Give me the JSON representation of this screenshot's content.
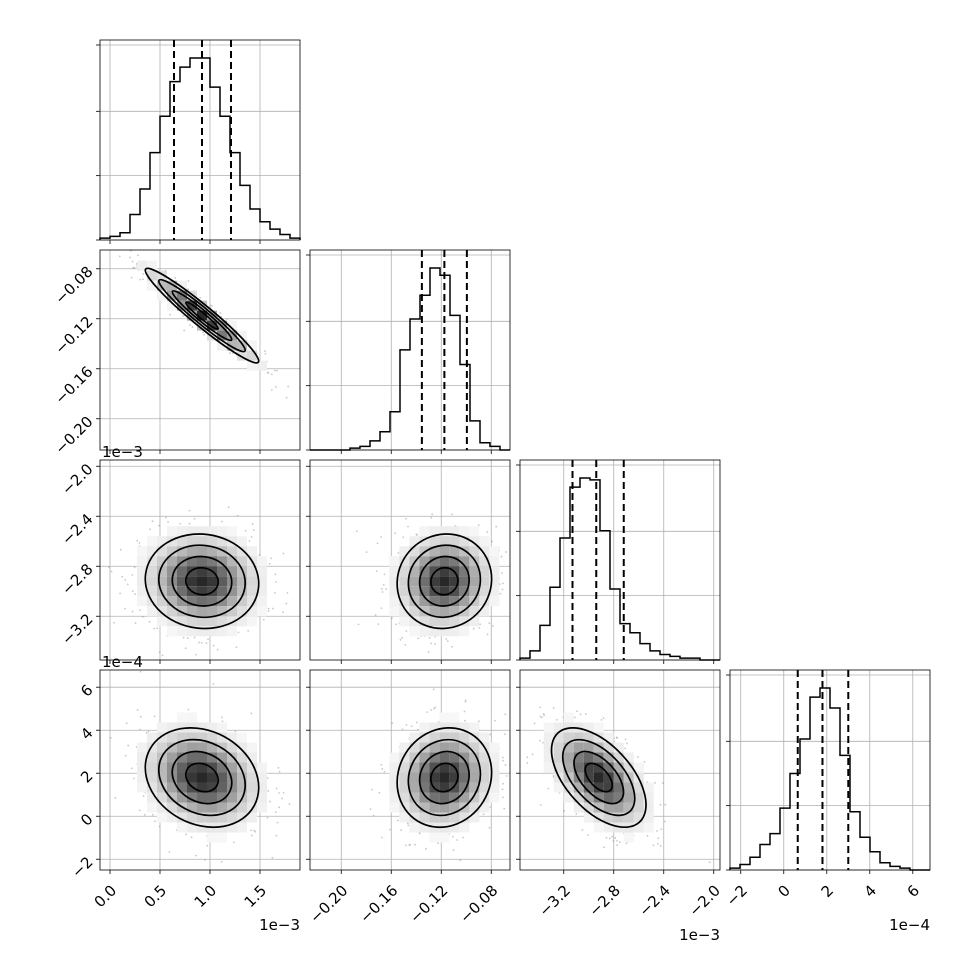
{
  "chart_data": {
    "type": "corner",
    "style": {
      "grid": true,
      "hist_color": "#000000",
      "scatter_color": "#9a9a9a",
      "contour_color": "#000000"
    },
    "params": [
      {
        "id": "p0",
        "range": [
          -0.0001,
          0.0019
        ],
        "offset_label": "1e−3",
        "ticks": [
          {
            "v": 0.0,
            "label": "0.0"
          },
          {
            "v": 0.0005,
            "label": "0.5"
          },
          {
            "v": 0.001,
            "label": "1.0"
          },
          {
            "v": 0.0015,
            "label": "1.5"
          }
        ],
        "mean": 0.00092,
        "sd": 0.00027,
        "quantiles": [
          0.00064,
          0.00092,
          0.00121
        ],
        "hist_counts": [
          1,
          2,
          4,
          14,
          28,
          48,
          68,
          87,
          95,
          100,
          100,
          84,
          68,
          48,
          30,
          17,
          10,
          6,
          3,
          1
        ]
      },
      {
        "id": "p1",
        "range": [
          -0.225,
          -0.065
        ],
        "offset_label": "",
        "ticks": [
          {
            "v": -0.2,
            "label": "−0.20"
          },
          {
            "v": -0.16,
            "label": "−0.16"
          },
          {
            "v": -0.12,
            "label": "−0.12"
          },
          {
            "v": -0.08,
            "label": "−0.08"
          }
        ],
        "mean": -0.1175,
        "sd": 0.018,
        "quantiles": [
          -0.1355,
          -0.1175,
          -0.0995
        ],
        "hist_counts": [
          0,
          0,
          0,
          0,
          1,
          2,
          5,
          10,
          21,
          55,
          72,
          85,
          100,
          96,
          74,
          47,
          16,
          4,
          2,
          0
        ]
      },
      {
        "id": "p2",
        "range": [
          -0.00355,
          -0.00195
        ],
        "offset_label": "1e−3",
        "ticks": [
          {
            "v": -0.0032,
            "label": "−3.2"
          },
          {
            "v": -0.0028,
            "label": "−2.8"
          },
          {
            "v": -0.0024,
            "label": "−2.4"
          },
          {
            "v": -0.002,
            "label": "−2.0"
          }
        ],
        "mean": -0.00292,
        "sd": 0.00018,
        "quantiles": [
          -0.00313,
          -0.00294,
          -0.00272
        ],
        "hist_counts": [
          1,
          5,
          19,
          40,
          67,
          95,
          100,
          99,
          71,
          39,
          20,
          15,
          9,
          5,
          3,
          2,
          1,
          1,
          0,
          0
        ]
      },
      {
        "id": "p3",
        "range": [
          -0.00025,
          0.00068
        ],
        "offset_label": "1e−4",
        "ticks": [
          {
            "v": -0.0002,
            "label": "−2"
          },
          {
            "v": 0.0,
            "label": "0"
          },
          {
            "v": 0.0002,
            "label": "2"
          },
          {
            "v": 0.0004,
            "label": "4"
          },
          {
            "v": 0.0006,
            "label": "6"
          }
        ],
        "mean": 0.00018,
        "sd": 0.00011,
        "quantiles": [
          6.5e-05,
          0.00018,
          0.0003
        ],
        "hist_counts": [
          1,
          3,
          7,
          14,
          20,
          34,
          53,
          72,
          95,
          100,
          89,
          63,
          32,
          18,
          10,
          4,
          2,
          1,
          0,
          0
        ]
      }
    ],
    "correlations": [
      {
        "row": 1,
        "col": 0,
        "rho": -0.96
      },
      {
        "row": 2,
        "col": 0,
        "rho": -0.05
      },
      {
        "row": 2,
        "col": 1,
        "rho": 0.05
      },
      {
        "row": 3,
        "col": 0,
        "rho": -0.2
      },
      {
        "row": 3,
        "col": 1,
        "rho": 0.1
      },
      {
        "row": 3,
        "col": 2,
        "rho": -0.55
      }
    ],
    "hist_y_tick_fractions": [
      0.0,
      0.33,
      0.66,
      1.0
    ]
  }
}
